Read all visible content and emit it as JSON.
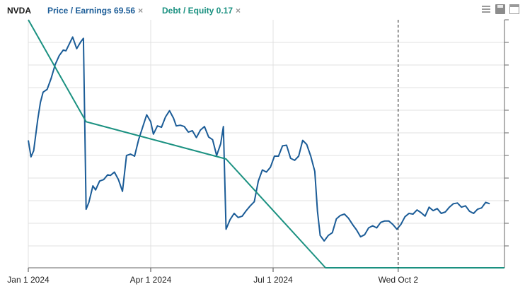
{
  "header": {
    "ticker": "NVDA",
    "series_tabs": [
      {
        "label": "Price / Earnings 69.56",
        "color": "#1b5c97",
        "close": "×"
      },
      {
        "label": "Debt / Equity 0.17",
        "color": "#1b9181",
        "close": "×"
      }
    ],
    "toolbar_icons": [
      "menu-icon",
      "save-icon",
      "window-icon"
    ]
  },
  "chart_data": {
    "type": "line",
    "title": "",
    "x_tick_labels": [
      {
        "date": "2024-01-01",
        "label": "Jan 1 2024"
      },
      {
        "date": "2024-04-01",
        "label": "Apr 1 2024"
      },
      {
        "date": "2024-07-01",
        "label": "Jul 1 2024"
      },
      {
        "date": "2024-10-02",
        "label": "Wed Oct 2"
      }
    ],
    "crosshair_date": "2024-10-02",
    "xlim": [
      "2024-01-01",
      "2024-12-20"
    ],
    "grid": true,
    "series": [
      {
        "name": "Price / Earnings",
        "color": "#1b5c97",
        "points": [
          [
            "2024-01-01",
            82.5
          ],
          [
            "2024-01-03",
            80.1
          ],
          [
            "2024-01-05",
            81.0
          ],
          [
            "2024-01-08",
            85.5
          ],
          [
            "2024-01-10",
            88.0
          ],
          [
            "2024-01-12",
            89.5
          ],
          [
            "2024-01-15",
            89.9
          ],
          [
            "2024-01-18",
            91.5
          ],
          [
            "2024-01-21",
            93.5
          ],
          [
            "2024-01-24",
            94.8
          ],
          [
            "2024-01-27",
            95.6
          ],
          [
            "2024-01-29",
            95.5
          ],
          [
            "2024-02-01",
            96.7
          ],
          [
            "2024-02-03",
            97.5
          ],
          [
            "2024-02-06",
            95.8
          ],
          [
            "2024-02-09",
            96.8
          ],
          [
            "2024-02-11",
            97.3
          ],
          [
            "2024-02-13",
            72.5
          ],
          [
            "2024-02-15",
            73.5
          ],
          [
            "2024-02-18",
            75.9
          ],
          [
            "2024-02-20",
            75.3
          ],
          [
            "2024-02-23",
            76.6
          ],
          [
            "2024-02-26",
            76.8
          ],
          [
            "2024-02-29",
            77.5
          ],
          [
            "2024-03-02",
            77.4
          ],
          [
            "2024-03-05",
            77.9
          ],
          [
            "2024-03-08",
            76.8
          ],
          [
            "2024-03-11",
            75.1
          ],
          [
            "2024-03-14",
            80.3
          ],
          [
            "2024-03-17",
            80.5
          ],
          [
            "2024-03-20",
            80.2
          ],
          [
            "2024-03-23",
            82.6
          ],
          [
            "2024-03-26",
            84.4
          ],
          [
            "2024-03-29",
            86.2
          ],
          [
            "2024-04-01",
            85.2
          ],
          [
            "2024-04-03",
            83.4
          ],
          [
            "2024-04-06",
            84.6
          ],
          [
            "2024-04-09",
            84.4
          ],
          [
            "2024-04-12",
            85.9
          ],
          [
            "2024-04-15",
            86.8
          ],
          [
            "2024-04-18",
            85.7
          ],
          [
            "2024-04-20",
            84.6
          ],
          [
            "2024-04-23",
            84.7
          ],
          [
            "2024-04-26",
            84.5
          ],
          [
            "2024-04-29",
            83.7
          ],
          [
            "2024-05-02",
            83.9
          ],
          [
            "2024-05-05",
            82.9
          ],
          [
            "2024-05-08",
            84.0
          ],
          [
            "2024-05-11",
            84.5
          ],
          [
            "2024-05-14",
            83.0
          ],
          [
            "2024-05-17",
            82.6
          ],
          [
            "2024-05-20",
            80.3
          ],
          [
            "2024-05-23",
            82.0
          ],
          [
            "2024-05-25",
            84.5
          ],
          [
            "2024-05-27",
            69.6
          ],
          [
            "2024-05-30",
            71.0
          ],
          [
            "2024-06-02",
            71.9
          ],
          [
            "2024-06-05",
            71.3
          ],
          [
            "2024-06-08",
            71.5
          ],
          [
            "2024-06-11",
            72.3
          ],
          [
            "2024-06-14",
            73.0
          ],
          [
            "2024-06-17",
            73.6
          ],
          [
            "2024-06-20",
            76.6
          ],
          [
            "2024-06-23",
            78.2
          ],
          [
            "2024-06-26",
            77.9
          ],
          [
            "2024-06-29",
            78.6
          ],
          [
            "2024-07-02",
            80.2
          ],
          [
            "2024-07-05",
            80.2
          ],
          [
            "2024-07-08",
            81.7
          ],
          [
            "2024-07-11",
            81.8
          ],
          [
            "2024-07-14",
            79.9
          ],
          [
            "2024-07-17",
            79.6
          ],
          [
            "2024-07-20",
            80.2
          ],
          [
            "2024-07-23",
            82.5
          ],
          [
            "2024-07-26",
            81.9
          ],
          [
            "2024-07-29",
            80.2
          ],
          [
            "2024-08-01",
            78.0
          ],
          [
            "2024-08-03",
            72.2
          ],
          [
            "2024-08-05",
            68.7
          ],
          [
            "2024-08-08",
            67.9
          ],
          [
            "2024-08-11",
            68.7
          ],
          [
            "2024-08-14",
            69.1
          ],
          [
            "2024-08-17",
            71.1
          ],
          [
            "2024-08-20",
            71.6
          ],
          [
            "2024-08-23",
            71.8
          ],
          [
            "2024-08-26",
            71.2
          ],
          [
            "2024-08-29",
            70.3
          ],
          [
            "2024-09-01",
            69.5
          ],
          [
            "2024-09-04",
            68.5
          ],
          [
            "2024-09-07",
            68.8
          ],
          [
            "2024-09-10",
            69.8
          ],
          [
            "2024-09-13",
            70.1
          ],
          [
            "2024-09-16",
            69.8
          ],
          [
            "2024-09-19",
            70.6
          ],
          [
            "2024-09-22",
            70.8
          ],
          [
            "2024-09-25",
            70.8
          ],
          [
            "2024-09-28",
            70.3
          ],
          [
            "2024-10-01",
            69.6
          ],
          [
            "2024-10-04",
            70.3
          ],
          [
            "2024-10-07",
            71.4
          ],
          [
            "2024-10-10",
            71.9
          ],
          [
            "2024-10-13",
            71.8
          ],
          [
            "2024-10-16",
            72.4
          ],
          [
            "2024-10-19",
            72.0
          ],
          [
            "2024-10-22",
            71.5
          ],
          [
            "2024-10-25",
            72.8
          ],
          [
            "2024-10-28",
            72.3
          ],
          [
            "2024-10-31",
            72.6
          ],
          [
            "2024-11-03",
            71.9
          ],
          [
            "2024-11-06",
            72.1
          ],
          [
            "2024-11-09",
            72.8
          ],
          [
            "2024-11-12",
            73.3
          ],
          [
            "2024-11-15",
            73.4
          ],
          [
            "2024-11-18",
            72.8
          ],
          [
            "2024-11-21",
            73.0
          ],
          [
            "2024-11-24",
            72.2
          ],
          [
            "2024-11-27",
            71.9
          ],
          [
            "2024-11-30",
            72.5
          ],
          [
            "2024-12-03",
            72.7
          ],
          [
            "2024-12-06",
            73.5
          ],
          [
            "2024-12-09",
            73.3
          ]
        ]
      },
      {
        "name": "Debt / Equity",
        "color": "#1b9181",
        "points": [
          [
            "2024-01-01",
            100.0
          ],
          [
            "2024-02-13",
            85.2
          ],
          [
            "2024-05-27",
            79.8
          ],
          [
            "2024-08-09",
            64.0
          ],
          [
            "2024-12-20",
            64.0
          ]
        ]
      }
    ]
  }
}
